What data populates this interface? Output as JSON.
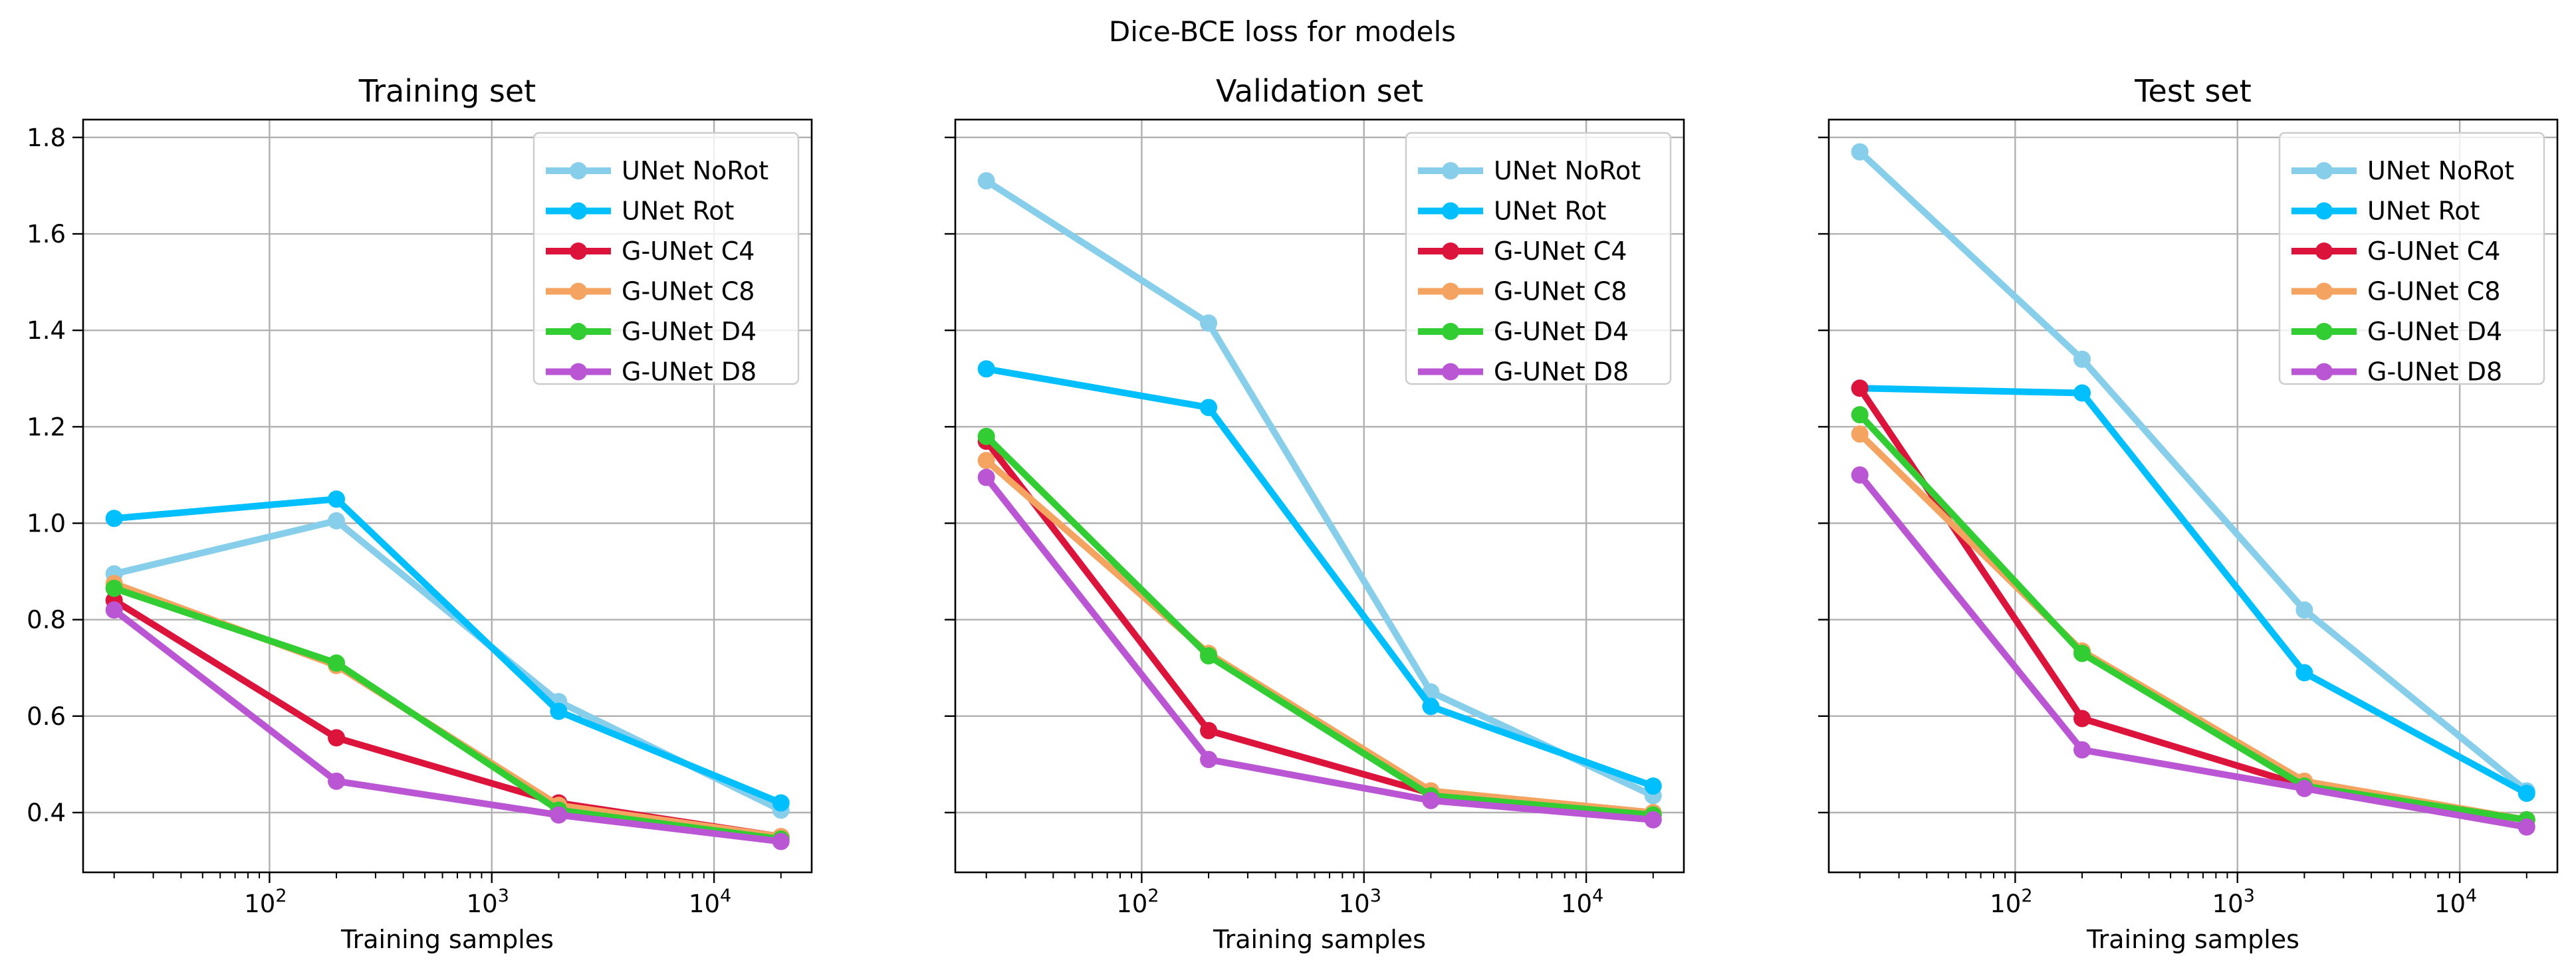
{
  "suptitle": "Dice-BCE loss for models",
  "chart_data": [
    {
      "type": "line",
      "title": "Training set",
      "xlabel": "Training samples",
      "ylabel": "",
      "x_scale": "log",
      "x": [
        20,
        200,
        2000,
        20000
      ],
      "xlim": [
        14.5,
        27500
      ],
      "ylim": [
        0.276,
        1.837
      ],
      "x_tick_labels": [
        "10",
        "10",
        "10"
      ],
      "x_tick_exponents": [
        "2",
        "3",
        "4"
      ],
      "y_tick_labels": [
        "0.4",
        "0.6",
        "0.8",
        "1.0",
        "1.2",
        "1.4",
        "1.6",
        "1.8"
      ],
      "grid": true,
      "legend_position": "top-right",
      "series": [
        {
          "name": "UNet NoRot",
          "color": "#87CEEB",
          "values": [
            0.895,
            1.005,
            0.63,
            0.405
          ]
        },
        {
          "name": "UNet Rot",
          "color": "#00BFFF",
          "values": [
            1.01,
            1.05,
            0.61,
            0.42
          ]
        },
        {
          "name": "G-UNet C4",
          "color": "#DC143C",
          "values": [
            0.84,
            0.555,
            0.42,
            0.35
          ]
        },
        {
          "name": "G-UNet C8",
          "color": "#F4A460",
          "values": [
            0.875,
            0.705,
            0.415,
            0.35
          ]
        },
        {
          "name": "G-UNet D4",
          "color": "#32CD32",
          "values": [
            0.865,
            0.71,
            0.405,
            0.345
          ]
        },
        {
          "name": "G-UNet D8",
          "color": "#BA55D3",
          "values": [
            0.82,
            0.465,
            0.395,
            0.34
          ]
        }
      ]
    },
    {
      "type": "line",
      "title": "Validation set",
      "xlabel": "Training samples",
      "ylabel": "",
      "x_scale": "log",
      "x": [
        20,
        200,
        2000,
        20000
      ],
      "xlim": [
        14.5,
        27500
      ],
      "ylim": [
        0.276,
        1.837
      ],
      "x_tick_labels": [
        "10",
        "10",
        "10"
      ],
      "x_tick_exponents": [
        "2",
        "3",
        "4"
      ],
      "y_tick_labels": [],
      "grid": true,
      "legend_position": "top-right",
      "series": [
        {
          "name": "UNet NoRot",
          "color": "#87CEEB",
          "values": [
            1.71,
            1.415,
            0.65,
            0.435
          ]
        },
        {
          "name": "UNet Rot",
          "color": "#00BFFF",
          "values": [
            1.32,
            1.24,
            0.62,
            0.455
          ]
        },
        {
          "name": "G-UNet C4",
          "color": "#DC143C",
          "values": [
            1.17,
            0.57,
            0.44,
            0.395
          ]
        },
        {
          "name": "G-UNet C8",
          "color": "#F4A460",
          "values": [
            1.13,
            0.73,
            0.445,
            0.4
          ]
        },
        {
          "name": "G-UNet D4",
          "color": "#32CD32",
          "values": [
            1.18,
            0.725,
            0.435,
            0.395
          ]
        },
        {
          "name": "G-UNet D8",
          "color": "#BA55D3",
          "values": [
            1.095,
            0.51,
            0.425,
            0.385
          ]
        }
      ]
    },
    {
      "type": "line",
      "title": "Test set",
      "xlabel": "Training samples",
      "ylabel": "",
      "x_scale": "log",
      "x": [
        20,
        200,
        2000,
        20000
      ],
      "xlim": [
        14.5,
        27500
      ],
      "ylim": [
        0.276,
        1.837
      ],
      "x_tick_labels": [
        "10",
        "10",
        "10"
      ],
      "x_tick_exponents": [
        "2",
        "3",
        "4"
      ],
      "y_tick_labels": [],
      "grid": true,
      "legend_position": "top-right",
      "series": [
        {
          "name": "UNet NoRot",
          "color": "#87CEEB",
          "values": [
            1.77,
            1.34,
            0.82,
            0.445
          ]
        },
        {
          "name": "UNet Rot",
          "color": "#00BFFF",
          "values": [
            1.28,
            1.27,
            0.69,
            0.44
          ]
        },
        {
          "name": "G-UNet C4",
          "color": "#DC143C",
          "values": [
            1.28,
            0.595,
            0.455,
            0.385
          ]
        },
        {
          "name": "G-UNet C8",
          "color": "#F4A460",
          "values": [
            1.185,
            0.735,
            0.465,
            0.385
          ]
        },
        {
          "name": "G-UNet D4",
          "color": "#32CD32",
          "values": [
            1.225,
            0.73,
            0.455,
            0.385
          ]
        },
        {
          "name": "G-UNet D8",
          "color": "#BA55D3",
          "values": [
            1.1,
            0.53,
            0.45,
            0.37
          ]
        }
      ]
    }
  ]
}
